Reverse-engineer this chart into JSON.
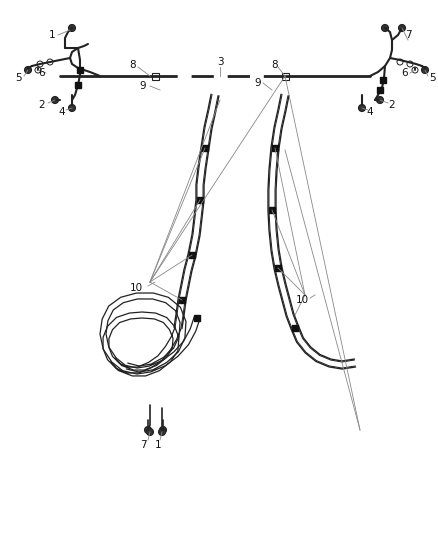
{
  "bg_color": "#ffffff",
  "line_color": "#222222",
  "label_color": "#111111",
  "callout_color": "#888888",
  "fig_width": 4.38,
  "fig_height": 5.33,
  "dpi": 100
}
